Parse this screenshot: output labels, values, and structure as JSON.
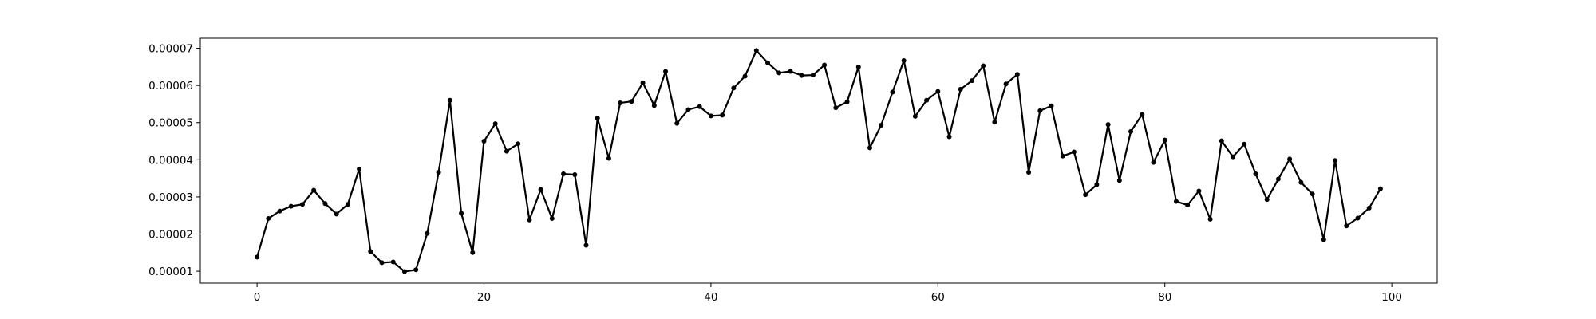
{
  "chart_data": {
    "type": "line",
    "title": "",
    "xlabel": "",
    "ylabel": "",
    "grid": false,
    "legend": "none",
    "xlim": [
      -5,
      104
    ],
    "ylim": [
      6.8e-06,
      7.27e-05
    ],
    "x_ticks": [
      0,
      20,
      40,
      60,
      80,
      100
    ],
    "x_tick_labels": [
      "0",
      "20",
      "40",
      "60",
      "80",
      "100"
    ],
    "y_ticks": [
      1e-05,
      2e-05,
      3e-05,
      4e-05,
      5e-05,
      6e-05,
      7e-05
    ],
    "y_tick_labels": [
      "0.00001",
      "0.00002",
      "0.00003",
      "0.00004",
      "0.00005",
      "0.00006",
      "0.00007"
    ],
    "series": [
      {
        "color": "#000000",
        "marker": "dot",
        "x": [
          0,
          1,
          2,
          3,
          4,
          5,
          6,
          7,
          8,
          9,
          10,
          11,
          12,
          13,
          14,
          15,
          16,
          17,
          18,
          19,
          20,
          21,
          22,
          23,
          24,
          25,
          26,
          27,
          28,
          29,
          30,
          31,
          32,
          33,
          34,
          35,
          36,
          37,
          38,
          39,
          40,
          41,
          42,
          43,
          44,
          45,
          46,
          47,
          48,
          49,
          50,
          51,
          52,
          53,
          54,
          55,
          56,
          57,
          58,
          59,
          60,
          61,
          62,
          63,
          64,
          65,
          66,
          67,
          68,
          69,
          70,
          71,
          72,
          73,
          74,
          75,
          76,
          77,
          78,
          79,
          80,
          81,
          82,
          83,
          84,
          85,
          86,
          87,
          88,
          89,
          90,
          91,
          92,
          93,
          94,
          95,
          96,
          97,
          98,
          99
        ],
        "y": [
          1.38e-05,
          2.42e-05,
          2.62e-05,
          2.75e-05,
          2.8e-05,
          3.18e-05,
          2.82e-05,
          2.54e-05,
          2.8e-05,
          3.75e-05,
          1.53e-05,
          1.23e-05,
          1.25e-05,
          9.9e-06,
          1.04e-05,
          2.02e-05,
          3.66e-05,
          5.6e-05,
          2.56e-05,
          1.5e-05,
          4.5e-05,
          4.97e-05,
          4.23e-05,
          4.43e-05,
          2.38e-05,
          3.2e-05,
          2.42e-05,
          3.62e-05,
          3.6e-05,
          1.7e-05,
          5.12e-05,
          4.04e-05,
          5.53e-05,
          5.57e-05,
          6.07e-05,
          5.46e-05,
          6.38e-05,
          4.98e-05,
          5.35e-05,
          5.43e-05,
          5.18e-05,
          5.2e-05,
          5.93e-05,
          6.25e-05,
          6.94e-05,
          6.61e-05,
          6.34e-05,
          6.38e-05,
          6.27e-05,
          6.28e-05,
          6.55e-05,
          5.4e-05,
          5.56e-05,
          6.5e-05,
          4.32e-05,
          4.93e-05,
          5.82e-05,
          6.67e-05,
          5.17e-05,
          5.6e-05,
          5.84e-05,
          4.62e-05,
          5.9e-05,
          6.13e-05,
          6.53e-05,
          5.01e-05,
          6.04e-05,
          6.3e-05,
          3.66e-05,
          5.32e-05,
          5.45e-05,
          4.1e-05,
          4.21e-05,
          3.06e-05,
          3.33e-05,
          4.95e-05,
          3.44e-05,
          4.76e-05,
          5.22e-05,
          3.93e-05,
          4.53e-05,
          2.88e-05,
          2.78e-05,
          3.16e-05,
          2.4e-05,
          4.51e-05,
          4.08e-05,
          4.42e-05,
          3.62e-05,
          2.93e-05,
          3.48e-05,
          4.02e-05,
          3.39e-05,
          3.08e-05,
          1.85e-05,
          3.98e-05,
          2.22e-05,
          2.43e-05,
          2.7e-05,
          3.22e-05
        ]
      }
    ]
  }
}
